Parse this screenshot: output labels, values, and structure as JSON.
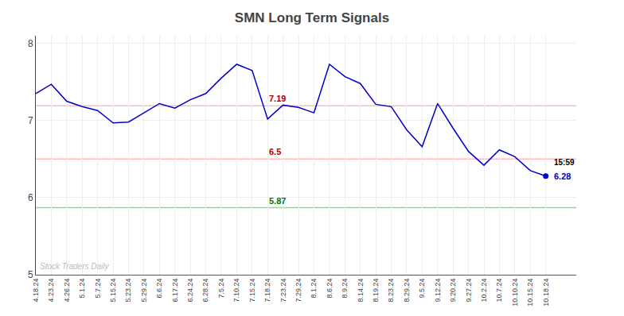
{
  "chart_data": {
    "type": "line",
    "title": "SMN Long Term Signals",
    "categories": [
      "4.18.24",
      "4.23.24",
      "4.26.24",
      "5.1.24",
      "5.7.24",
      "5.15.24",
      "5.23.24",
      "5.29.24",
      "6.6.24",
      "6.17.24",
      "6.24.24",
      "6.28.24",
      "7.5.24",
      "7.10.24",
      "7.15.24",
      "7.18.24",
      "7.23.24",
      "7.29.24",
      "8.1.24",
      "8.6.24",
      "8.9.24",
      "8.14.24",
      "8.19.24",
      "8.23.24",
      "8.29.24",
      "9.5.24",
      "9.12.24",
      "9.20.24",
      "9.27.24",
      "10.2.24",
      "10.7.24",
      "10.10.24",
      "10.15.24",
      "10.18.24"
    ],
    "values": [
      7.35,
      7.47,
      7.25,
      7.18,
      7.13,
      6.97,
      6.98,
      7.1,
      7.22,
      7.16,
      7.27,
      7.35,
      7.55,
      7.73,
      7.65,
      7.02,
      7.2,
      7.17,
      7.1,
      7.73,
      7.57,
      7.48,
      7.21,
      7.18,
      6.88,
      6.66,
      7.22,
      6.9,
      6.6,
      6.42,
      6.62,
      6.53,
      6.35,
      6.28
    ],
    "color": "#0000cc",
    "ylim": [
      5.0,
      8.1
    ],
    "yticks": [
      5,
      6,
      7,
      8
    ],
    "grid": true,
    "reference_lines": [
      {
        "value": 7.19,
        "label": "7.19",
        "color": "#ffbbbb",
        "label_color": "#aa0000"
      },
      {
        "value": 6.5,
        "label": "6.5",
        "color": "#ffbbbb",
        "label_color": "#aa0000"
      },
      {
        "value": 5.87,
        "label": "5.87",
        "color": "#88dd88",
        "label_color": "#007700"
      }
    ],
    "last_point": {
      "value": 6.28,
      "label": "6.28",
      "time_label": "15:59"
    },
    "watermark": "Stock Traders Daily",
    "background_color": "#ffffff"
  }
}
